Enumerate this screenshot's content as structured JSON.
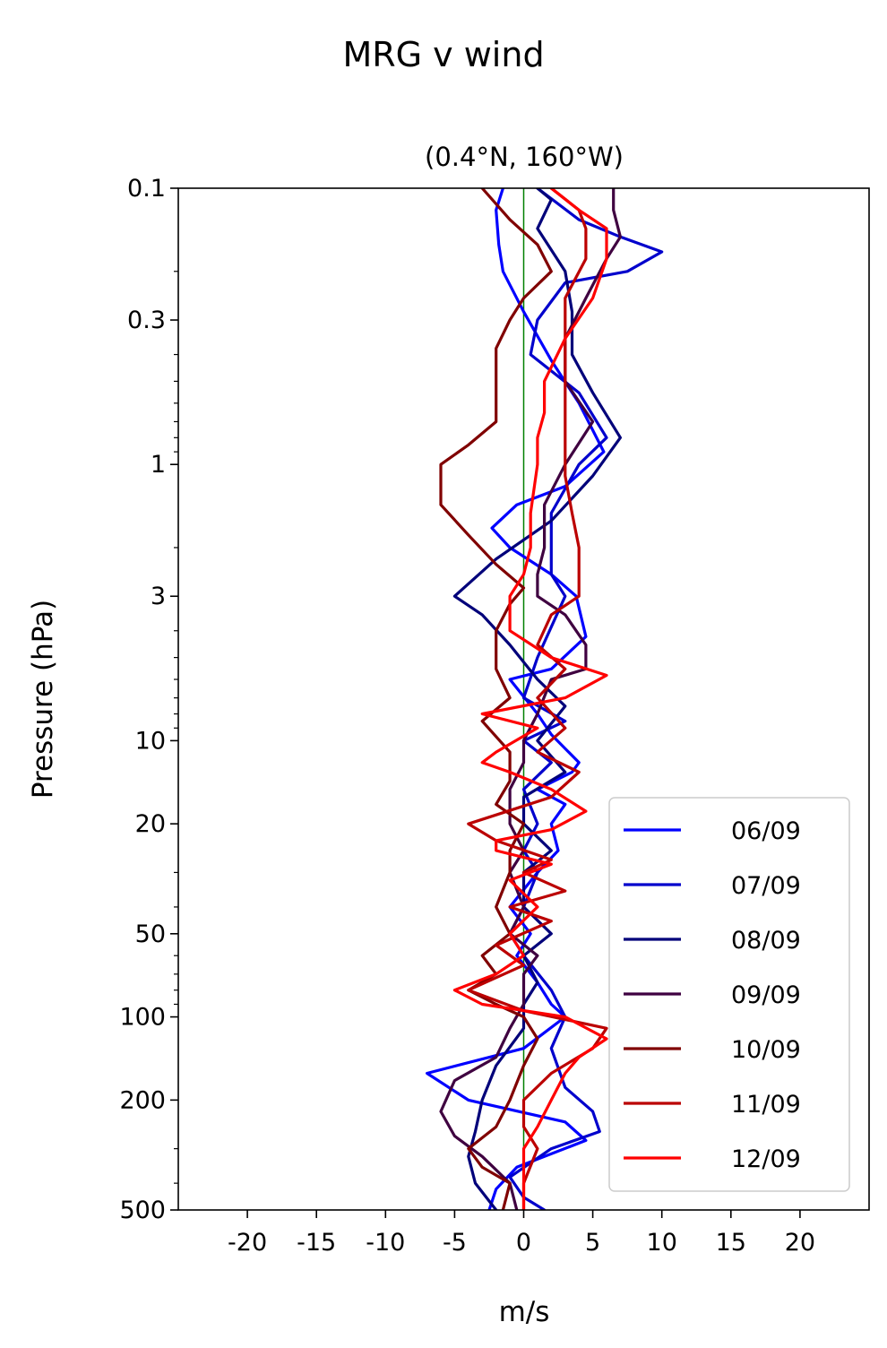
{
  "figure": {
    "suptitle": "MRG v wind"
  },
  "chart_data": {
    "type": "line",
    "title": "(0.4°N, 160°W)",
    "xlabel": "m/s",
    "ylabel": "Pressure (hPa)",
    "xlim": [
      -25,
      25
    ],
    "ylim": [
      500,
      0.1
    ],
    "y_scale": "log",
    "y_inverted": true,
    "grid": false,
    "legend_placement": "lower right",
    "x_ticks": [
      -20,
      -15,
      -10,
      -5,
      0,
      5,
      10,
      15,
      20
    ],
    "x_tick_labels": [
      "-20",
      "-15",
      "-10",
      "-5",
      "0",
      "5",
      "10",
      "15",
      "20"
    ],
    "y_ticks": [
      0.1,
      0.3,
      1,
      3,
      10,
      20,
      50,
      100,
      200,
      500
    ],
    "y_tick_labels": [
      "0.1",
      "0.3",
      "1",
      "3",
      "10",
      "20",
      "50",
      "100",
      "200",
      "500"
    ],
    "zero_line": {
      "x": 0,
      "color": "#008000"
    },
    "series": [
      {
        "name": "06/09",
        "color": "#0000ff",
        "points": [
          [
            -1.5,
            0.1
          ],
          [
            -2,
            0.12
          ],
          [
            -1.8,
            0.16
          ],
          [
            -1.5,
            0.2
          ],
          [
            0,
            0.28
          ],
          [
            2,
            0.42
          ],
          [
            4,
            0.6
          ],
          [
            5.8,
            0.9
          ],
          [
            3,
            1.2
          ],
          [
            -0.5,
            1.4
          ],
          [
            -2.3,
            1.7
          ],
          [
            -1,
            2
          ],
          [
            2,
            2.5
          ],
          [
            3.8,
            3
          ],
          [
            4.5,
            4.2
          ],
          [
            2,
            5.5
          ],
          [
            -1,
            6
          ],
          [
            1,
            8
          ],
          [
            2,
            9.5
          ],
          [
            4,
            12
          ],
          [
            3.5,
            13
          ],
          [
            1,
            15
          ],
          [
            3,
            17
          ],
          [
            2,
            20
          ],
          [
            2.5,
            25
          ],
          [
            1,
            30
          ],
          [
            -1,
            40
          ],
          [
            0.5,
            50
          ],
          [
            -0.5,
            60
          ],
          [
            1,
            75
          ],
          [
            2,
            90
          ],
          [
            3,
            100
          ],
          [
            0,
            130
          ],
          [
            -7,
            160
          ],
          [
            -4,
            200
          ],
          [
            3,
            240
          ],
          [
            4.5,
            280
          ],
          [
            -0.5,
            350
          ],
          [
            -2,
            420
          ],
          [
            -2.5,
            500
          ]
        ]
      },
      {
        "name": "07/09",
        "color": "#0000cc",
        "points": [
          [
            1,
            0.1
          ],
          [
            4,
            0.13
          ],
          [
            7,
            0.15
          ],
          [
            10,
            0.17
          ],
          [
            7.5,
            0.2
          ],
          [
            3,
            0.22
          ],
          [
            1,
            0.3
          ],
          [
            0.5,
            0.4
          ],
          [
            4,
            0.55
          ],
          [
            6,
            0.8
          ],
          [
            4,
            1
          ],
          [
            2,
            1.5
          ],
          [
            2,
            2
          ],
          [
            2,
            2.5
          ],
          [
            3,
            3
          ],
          [
            1,
            5
          ],
          [
            0,
            7
          ],
          [
            3,
            8.5
          ],
          [
            0,
            10
          ],
          [
            2,
            12
          ],
          [
            0,
            15
          ],
          [
            1,
            20
          ],
          [
            0,
            25
          ],
          [
            1,
            30
          ],
          [
            0,
            40
          ],
          [
            -1,
            50
          ],
          [
            0,
            60
          ],
          [
            2,
            80
          ],
          [
            3,
            100
          ],
          [
            2,
            130
          ],
          [
            3,
            180
          ],
          [
            5,
            220
          ],
          [
            5.5,
            260
          ],
          [
            2,
            300
          ],
          [
            -1,
            380
          ],
          [
            0,
            450
          ],
          [
            1.5,
            500
          ]
        ]
      },
      {
        "name": "08/09",
        "color": "#00007a",
        "points": [
          [
            1,
            0.1
          ],
          [
            2,
            0.11
          ],
          [
            1,
            0.14
          ],
          [
            3,
            0.2
          ],
          [
            3.5,
            0.28
          ],
          [
            3.5,
            0.4
          ],
          [
            5,
            0.55
          ],
          [
            7,
            0.8
          ],
          [
            5,
            1.1
          ],
          [
            2,
            1.6
          ],
          [
            -2,
            2.2
          ],
          [
            -5,
            3
          ],
          [
            -3,
            3.5
          ],
          [
            -1,
            4.5
          ],
          [
            1,
            6
          ],
          [
            3,
            7.5
          ],
          [
            1,
            10
          ],
          [
            3,
            13
          ],
          [
            0,
            16
          ],
          [
            0,
            20
          ],
          [
            2,
            25
          ],
          [
            0,
            30
          ],
          [
            0,
            40
          ],
          [
            2,
            50
          ],
          [
            0,
            60
          ],
          [
            1,
            75
          ],
          [
            0,
            90
          ],
          [
            0,
            110
          ],
          [
            -2,
            150
          ],
          [
            -3,
            200
          ],
          [
            -3.5,
            260
          ],
          [
            -4,
            320
          ],
          [
            -3.5,
            400
          ],
          [
            -2,
            500
          ]
        ]
      },
      {
        "name": "09/09",
        "color": "#3f0040",
        "points": [
          [
            6.5,
            0.1
          ],
          [
            6.5,
            0.12
          ],
          [
            7,
            0.15
          ],
          [
            6,
            0.18
          ],
          [
            4.5,
            0.25
          ],
          [
            3,
            0.35
          ],
          [
            3,
            0.5
          ],
          [
            5,
            0.7
          ],
          [
            3,
            1
          ],
          [
            1.5,
            1.4
          ],
          [
            1.5,
            2
          ],
          [
            1,
            2.5
          ],
          [
            1,
            3
          ],
          [
            3,
            3.5
          ],
          [
            4.5,
            4.5
          ],
          [
            4.5,
            5.5
          ],
          [
            2,
            6
          ],
          [
            1,
            8
          ],
          [
            0,
            10
          ],
          [
            0,
            12
          ],
          [
            -1,
            15
          ],
          [
            -1,
            20
          ],
          [
            0,
            25
          ],
          [
            -1,
            30
          ],
          [
            0,
            40
          ],
          [
            -1,
            50
          ],
          [
            1,
            60
          ],
          [
            0,
            70
          ],
          [
            0,
            90
          ],
          [
            -1,
            110
          ],
          [
            -2,
            140
          ],
          [
            -5,
            170
          ],
          [
            -6,
            220
          ],
          [
            -5,
            270
          ],
          [
            -3,
            320
          ],
          [
            -1,
            400
          ],
          [
            -0.5,
            500
          ]
        ]
      },
      {
        "name": "10/09",
        "color": "#800000",
        "points": [
          [
            -3,
            0.1
          ],
          [
            -1,
            0.13
          ],
          [
            1,
            0.16
          ],
          [
            2,
            0.2
          ],
          [
            0,
            0.25
          ],
          [
            -1,
            0.3
          ],
          [
            -2,
            0.38
          ],
          [
            -2,
            0.5
          ],
          [
            -2,
            0.7
          ],
          [
            -4,
            0.85
          ],
          [
            -6,
            1
          ],
          [
            -6,
            1.4
          ],
          [
            -4,
            1.8
          ],
          [
            -2,
            2.3
          ],
          [
            0,
            2.8
          ],
          [
            -1,
            3.2
          ],
          [
            -2,
            4
          ],
          [
            -2,
            5.5
          ],
          [
            -1,
            7
          ],
          [
            -3,
            8.5
          ],
          [
            -1,
            11
          ],
          [
            -1,
            14
          ],
          [
            -2,
            17
          ],
          [
            0,
            20
          ],
          [
            -1,
            25
          ],
          [
            -1,
            30
          ],
          [
            -2,
            40
          ],
          [
            -1,
            50
          ],
          [
            -3,
            60
          ],
          [
            -2,
            70
          ],
          [
            -4,
            80
          ],
          [
            -2,
            90
          ],
          [
            0,
            100
          ],
          [
            1,
            120
          ],
          [
            0,
            150
          ],
          [
            -1,
            200
          ],
          [
            -2,
            250
          ],
          [
            -4,
            300
          ],
          [
            -3,
            350
          ],
          [
            -1,
            400
          ],
          [
            -1.5,
            500
          ]
        ]
      },
      {
        "name": "11/09",
        "color": "#bb0000",
        "points": [
          [
            2,
            0.1
          ],
          [
            4,
            0.12
          ],
          [
            4.5,
            0.14
          ],
          [
            4.5,
            0.18
          ],
          [
            3,
            0.25
          ],
          [
            3,
            0.35
          ],
          [
            3,
            0.5
          ],
          [
            3,
            0.8
          ],
          [
            3,
            1.1
          ],
          [
            3.5,
            1.5
          ],
          [
            4,
            2
          ],
          [
            4,
            2.5
          ],
          [
            4,
            3
          ],
          [
            2,
            3.5
          ],
          [
            1,
            4.5
          ],
          [
            3,
            5.5
          ],
          [
            1,
            7
          ],
          [
            3,
            9
          ],
          [
            1,
            11
          ],
          [
            4,
            13
          ],
          [
            2,
            16
          ],
          [
            -4,
            20
          ],
          [
            -2,
            23
          ],
          [
            2,
            27
          ],
          [
            0,
            30
          ],
          [
            3,
            35
          ],
          [
            -1,
            40
          ],
          [
            2,
            45
          ],
          [
            -2,
            55
          ],
          [
            0,
            65
          ],
          [
            -4,
            80
          ],
          [
            0,
            95
          ],
          [
            6,
            110
          ],
          [
            5,
            130
          ],
          [
            2,
            160
          ],
          [
            0,
            200
          ],
          [
            0,
            250
          ],
          [
            1,
            300
          ],
          [
            0,
            400
          ],
          [
            0,
            500
          ]
        ]
      },
      {
        "name": "12/09",
        "color": "#ff0000",
        "points": [
          [
            2,
            0.1
          ],
          [
            4,
            0.12
          ],
          [
            6,
            0.14
          ],
          [
            6,
            0.18
          ],
          [
            5,
            0.25
          ],
          [
            3,
            0.35
          ],
          [
            1.5,
            0.5
          ],
          [
            1.5,
            0.65
          ],
          [
            1,
            0.8
          ],
          [
            1,
            1
          ],
          [
            0.5,
            1.5
          ],
          [
            0.5,
            2
          ],
          [
            0,
            2.5
          ],
          [
            -1,
            3
          ],
          [
            -1,
            4
          ],
          [
            2,
            5
          ],
          [
            6,
            5.8
          ],
          [
            3,
            7
          ],
          [
            -3,
            8
          ],
          [
            1,
            9
          ],
          [
            -2,
            11
          ],
          [
            -3,
            12
          ],
          [
            -1,
            13
          ],
          [
            2,
            15
          ],
          [
            4.5,
            18
          ],
          [
            2,
            21
          ],
          [
            -2,
            23
          ],
          [
            -2,
            25
          ],
          [
            2,
            28
          ],
          [
            -1,
            32
          ],
          [
            1,
            40
          ],
          [
            -1,
            50
          ],
          [
            0,
            60
          ],
          [
            -2,
            70
          ],
          [
            -5,
            80
          ],
          [
            -3,
            90
          ],
          [
            3,
            100
          ],
          [
            6,
            120
          ],
          [
            4,
            140
          ],
          [
            3,
            160
          ],
          [
            2,
            200
          ],
          [
            1,
            250
          ],
          [
            0,
            300
          ],
          [
            0,
            400
          ],
          [
            0,
            500
          ]
        ]
      }
    ]
  }
}
